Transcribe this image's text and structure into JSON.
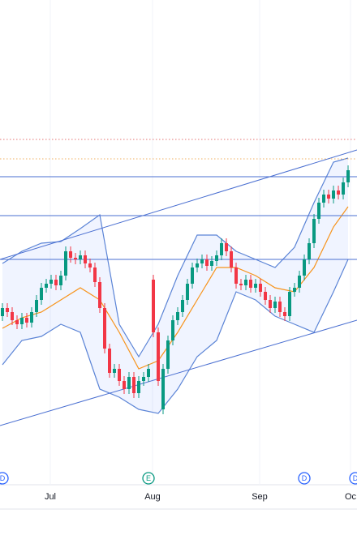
{
  "chart_data": {
    "type": "candlestick",
    "xlim": [
      -0.5,
      72.83
    ],
    "ylim": [
      0,
      580
    ],
    "xticks": [
      {
        "value": 9.83,
        "label": "Jul"
      },
      {
        "value": 30.83,
        "label": "Aug"
      },
      {
        "value": 52.83,
        "label": "Sep"
      },
      {
        "value": 71.5,
        "label": "Oc"
      }
    ],
    "up_color": "#089981",
    "down_color": "#f23645",
    "open": [
      190,
      200,
      195,
      185,
      180,
      188,
      182,
      195,
      210,
      225,
      230,
      235,
      228,
      240,
      270,
      262,
      260,
      265,
      255,
      250,
      232,
      200,
      150,
      120,
      125,
      110,
      100,
      115,
      95,
      110,
      115,
      235,
      170,
      75,
      125,
      160,
      185,
      195,
      210,
      230,
      250,
      255,
      260,
      252,
      258,
      265,
      280,
      270,
      250,
      230,
      228,
      235,
      225,
      230,
      220,
      210,
      200,
      208,
      195,
      190,
      220,
      225,
      240,
      260,
      280,
      310,
      330,
      340,
      335,
      345,
      340,
      355
    ],
    "high": [
      206,
      206,
      201,
      191,
      194,
      194,
      201,
      216,
      231,
      236,
      241,
      241,
      246,
      276,
      276,
      268,
      271,
      271,
      261,
      256,
      238,
      206,
      156,
      131,
      131,
      116,
      121,
      121,
      116,
      121,
      131,
      241,
      176,
      131,
      166,
      191,
      201,
      216,
      236,
      256,
      261,
      266,
      266,
      264,
      271,
      286,
      286,
      276,
      256,
      236,
      241,
      241,
      236,
      236,
      226,
      216,
      214,
      214,
      201,
      226,
      231,
      246,
      266,
      286,
      316,
      336,
      346,
      346,
      351,
      351,
      361,
      376
    ],
    "low": [
      184,
      189,
      179,
      174,
      174,
      176,
      176,
      189,
      204,
      219,
      224,
      222,
      222,
      234,
      256,
      254,
      254,
      249,
      244,
      226,
      194,
      144,
      114,
      114,
      104,
      94,
      94,
      89,
      89,
      104,
      109,
      164,
      104,
      69,
      119,
      154,
      179,
      189,
      204,
      224,
      244,
      249,
      246,
      246,
      252,
      259,
      264,
      244,
      224,
      222,
      222,
      219,
      219,
      214,
      204,
      194,
      194,
      189,
      184,
      184,
      214,
      219,
      234,
      254,
      274,
      304,
      324,
      329,
      329,
      334,
      334,
      349
    ],
    "close": [
      200,
      195,
      185,
      180,
      188,
      182,
      195,
      210,
      225,
      230,
      235,
      228,
      240,
      270,
      262,
      260,
      265,
      255,
      250,
      232,
      200,
      150,
      120,
      125,
      110,
      100,
      115,
      95,
      110,
      115,
      125,
      170,
      110,
      125,
      160,
      185,
      195,
      210,
      230,
      250,
      255,
      260,
      252,
      258,
      265,
      280,
      270,
      250,
      230,
      228,
      235,
      225,
      230,
      220,
      210,
      200,
      208,
      195,
      190,
      220,
      225,
      240,
      260,
      280,
      310,
      330,
      340,
      335,
      345,
      340,
      355,
      370
    ],
    "bands": {
      "x": [
        0,
        4,
        8,
        12,
        16,
        20,
        24,
        28,
        32,
        36,
        40,
        44,
        48,
        52,
        56,
        60,
        64,
        68,
        71
      ],
      "upper": [
        255,
        270,
        280,
        282,
        298,
        315,
        180,
        140,
        180,
        240,
        290,
        290,
        270,
        260,
        250,
        275,
        330,
        380,
        385
      ],
      "middle": [
        175,
        188,
        195,
        210,
        225,
        210,
        170,
        125,
        135,
        170,
        210,
        250,
        250,
        240,
        225,
        220,
        250,
        300,
        325
      ],
      "lower": [
        130,
        160,
        165,
        180,
        170,
        100,
        90,
        75,
        70,
        100,
        140,
        160,
        220,
        210,
        190,
        180,
        170,
        220,
        260
      ],
      "color": "#5b84d6",
      "middle_color": "#f7931a",
      "fill": "rgba(41,98,255,0.07)"
    },
    "levels": [
      {
        "value": 362,
        "color": "#4a6fd1",
        "style": "solid"
      },
      {
        "value": 314,
        "color": "#4a6fd1",
        "style": "solid"
      },
      {
        "value": 260,
        "color": "#4a6fd1",
        "style": "solid"
      },
      {
        "value": 408,
        "color": "#e57373",
        "style": "dotted"
      },
      {
        "value": 384,
        "color": "#f0b060",
        "style": "dotted"
      }
    ],
    "channels": [
      {
        "x": [
          -0.5,
          72.83
        ],
        "values": [
          260,
          395
        ],
        "color": "#4a6fd1"
      },
      {
        "x": [
          -0.5,
          72.83
        ],
        "values": [
          55,
          185
        ],
        "color": "#4a6fd1"
      }
    ],
    "events": [
      {
        "x": 0,
        "label": "D",
        "color": "#2962ff"
      },
      {
        "x": 30,
        "label": "E",
        "color": "#089981"
      },
      {
        "x": 62,
        "label": "D",
        "color": "#2962ff"
      },
      {
        "x": 72.5,
        "label": "D",
        "color": "#2962ff"
      }
    ]
  }
}
